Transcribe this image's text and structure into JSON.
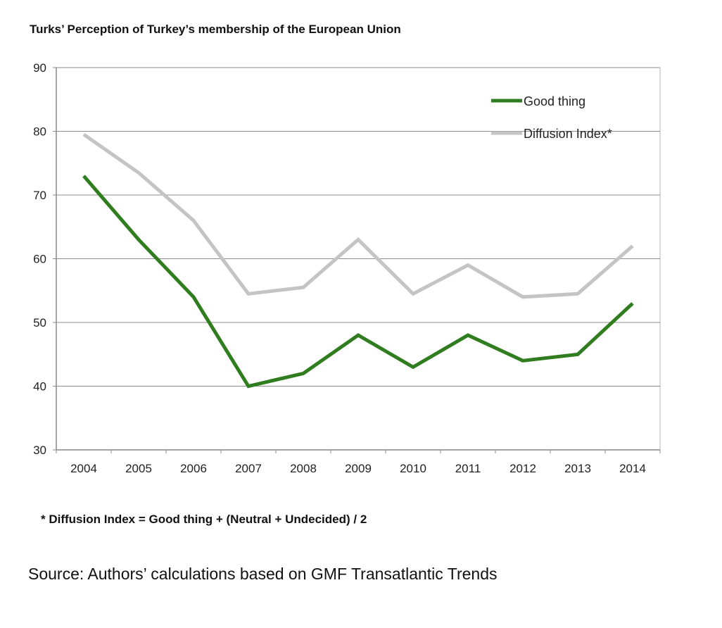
{
  "chart_data": {
    "type": "line",
    "title": "Turks’ Perception of Turkey’s membership of the European Union",
    "x": [
      "2004",
      "2005",
      "2006",
      "2007",
      "2008",
      "2009",
      "2010",
      "2011",
      "2012",
      "2013",
      "2014"
    ],
    "ylim": [
      30,
      90
    ],
    "yticks": [
      30,
      40,
      50,
      60,
      70,
      80,
      90
    ],
    "grid": true,
    "legend_position": "top-right",
    "series": [
      {
        "name": "Good thing",
        "color": "#2f7d1e",
        "values": [
          73,
          63,
          54,
          40,
          42,
          48,
          43,
          48,
          44,
          45,
          53
        ]
      },
      {
        "name": "Diffusion Index*",
        "color": "#c4c4c4",
        "values": [
          79.5,
          73.5,
          66,
          54.5,
          55.5,
          63,
          54.5,
          59,
          54,
          54.5,
          62
        ]
      }
    ],
    "footnote": "* Diffusion Index = Good thing + (Neutral + Undecided) / 2"
  },
  "source": "Source: Authors’ calculations based on GMF Transatlantic Trends"
}
